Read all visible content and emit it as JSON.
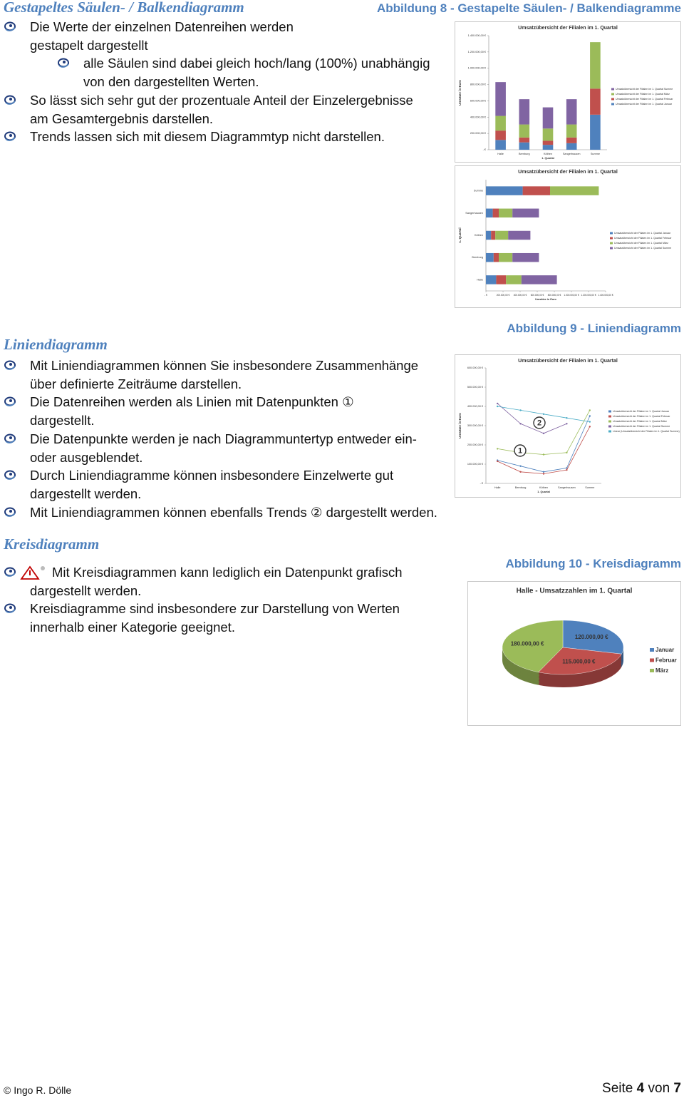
{
  "sections": [
    {
      "heading": "Gestapeltes Säulen- / Balkendiagramm",
      "caption": "Abbildung 8 - Gestapelte Säulen- / Balkendiagramme",
      "bullets": [
        {
          "lines": [
            "Die Werte der einzelnen Datenreihen werden",
            "gestapelt dargestellt"
          ],
          "sub": [
            {
              "lines": [
                "alle Säulen sind dabei gleich hoch/lang (100%) unabhängig",
                "von den dargestellten Werten."
              ]
            }
          ]
        },
        {
          "lines": [
            "So lässt sich sehr gut der prozentuale Anteil der Einzelergebnisse",
            "am Gesamtergebnis darstellen."
          ]
        },
        {
          "lines": [
            "Trends lassen sich mit diesem Diagrammtyp nicht darstellen."
          ]
        }
      ],
      "figures": [
        {
          "type": "stacked-column",
          "title": "Umsatzübersicht der Filialen im 1. Quartal",
          "y_label": "Umsätze in Euro",
          "x_label": "1. Quartal",
          "legend_reversed": true,
          "categories": [
            "Halle",
            "Bernburg",
            "Köthen",
            "Sangerhausen",
            "Summe"
          ],
          "ylim": [
            0,
            1400000
          ],
          "yticks": [
            {
              "value": 0,
              "label": "- €"
            },
            {
              "value": 200000,
              "label": "200.000,00 €"
            },
            {
              "value": 400000,
              "label": "400.000,00 €"
            },
            {
              "value": 600000,
              "label": "600.000,00 €"
            },
            {
              "value": 800000,
              "label": "800.000,00 €"
            },
            {
              "value": 1000000,
              "label": "1.000.000,00 €"
            },
            {
              "value": 1200000,
              "label": "1.200.000,00 €"
            },
            {
              "value": 1400000,
              "label": "1.400.000,00 €"
            }
          ],
          "series": [
            {
              "name": "Umsatzübersicht der Filialen im 1. Quartal Januar",
              "color": "#4f81bd",
              "values": [
                120000,
                90000,
                60000,
                80000,
                430000
              ]
            },
            {
              "name": "Umsatzübersicht der Filialen im 1. Quartal Februar",
              "color": "#c0504d",
              "values": [
                115000,
                60000,
                50000,
                70000,
                320000
              ]
            },
            {
              "name": "Umsatzübersicht der Filialen im 1. Quartal März",
              "color": "#9bbb59",
              "values": [
                180000,
                160000,
                150000,
                160000,
                570000
              ]
            },
            {
              "name": "Umsatzübersicht der Filialen im 1. Quartal Summe",
              "color": "#8064a2",
              "values": [
                415000,
                310000,
                260000,
                310000,
                null
              ]
            }
          ]
        },
        {
          "type": "stacked-bar",
          "title": "Umsatzübersicht der Filialen im 1. Quartal",
          "y_label": "1. Quartal",
          "x_label": "Umsätze in Euro",
          "legend_reversed": false,
          "categories": [
            "Halle",
            "Bernburg",
            "Köthen",
            "Sangerhausen",
            "Summe"
          ],
          "xlim": [
            0,
            1400000
          ],
          "xticks": [
            {
              "value": 0,
              "label": "- €"
            },
            {
              "value": 200000,
              "label": "200.000,00 €"
            },
            {
              "value": 400000,
              "label": "400.000,00 €"
            },
            {
              "value": 600000,
              "label": "600.000,00 €"
            },
            {
              "value": 800000,
              "label": "800.000,00 €"
            },
            {
              "value": 1000000,
              "label": "1.000.000,00 €"
            },
            {
              "value": 1200000,
              "label": "1.200.000,00 €"
            },
            {
              "value": 1400000,
              "label": "1.400.000,00 €"
            }
          ],
          "series": [
            {
              "name": "Umsatzübersicht der Filialen im 1. Quartal Januar",
              "color": "#4f81bd",
              "values": [
                120000,
                90000,
                60000,
                80000,
                430000
              ]
            },
            {
              "name": "Umsatzübersicht der Filialen im 1. Quartal Februar",
              "color": "#c0504d",
              "values": [
                115000,
                60000,
                50000,
                70000,
                320000
              ]
            },
            {
              "name": "Umsatzübersicht der Filialen im 1. Quartal März",
              "color": "#9bbb59",
              "values": [
                180000,
                160000,
                150000,
                160000,
                570000
              ]
            },
            {
              "name": "Umsatzübersicht der Filialen im 1. Quartal Summe",
              "color": "#8064a2",
              "values": [
                415000,
                310000,
                260000,
                310000,
                null
              ]
            }
          ]
        }
      ]
    },
    {
      "heading": "Liniendiagramm",
      "caption": "Abbildung 9 - Liniendiagramm",
      "bullets": [
        {
          "lines": [
            "Mit Liniendiagrammen können Sie insbesondere Zusammenhänge",
            "über definierte Zeiträume darstellen."
          ]
        },
        {
          "lines": [
            "Die Datenreihen werden als Linien mit Datenpunkten ①",
            "dargestellt."
          ]
        },
        {
          "lines": [
            "Die Datenpunkte werden je nach Diagrammuntertyp entweder ein-",
            "oder ausgeblendet."
          ]
        },
        {
          "lines": [
            "Durch Liniendiagramme können insbesondere Einzelwerte gut",
            "dargestellt werden."
          ]
        },
        {
          "lines": [
            "Mit Liniendiagrammen können ebenfalls Trends ② dargestellt werden."
          ]
        }
      ],
      "figures": [
        {
          "type": "line",
          "title": "Umsatzübersicht der Filialen im 1. Quartal",
          "y_label": "Umsätze in Euro",
          "x_label": "1. Quartal",
          "categories": [
            "Halle",
            "Bernburg",
            "Köthen",
            "Sangerhausen",
            "Summe"
          ],
          "ylim": [
            0,
            600000
          ],
          "yticks": [
            {
              "value": 0,
              "label": "- €"
            },
            {
              "value": 100000,
              "label": "100.000,00 €"
            },
            {
              "value": 200000,
              "label": "200.000,00 €"
            },
            {
              "value": 300000,
              "label": "300.000,00 €"
            },
            {
              "value": 400000,
              "label": "400.000,00 €"
            },
            {
              "value": 500000,
              "label": "500.000,00 €"
            },
            {
              "value": 600000,
              "label": "600.000,00 €"
            }
          ],
          "annotations": [
            "1",
            "2"
          ],
          "series": [
            {
              "name": "Umsatzübersicht der Filialen im 1. Quartal Januar",
              "color": "#4f81bd",
              "values": [
                120000,
                90000,
                60000,
                80000,
                350000
              ]
            },
            {
              "name": "Umsatzübersicht der Filialen im 1. Quartal Februar",
              "color": "#c0504d",
              "values": [
                115000,
                60000,
                50000,
                70000,
                295000
              ]
            },
            {
              "name": "Umsatzübersicht der Filialen im 1. Quartal März",
              "color": "#9bbb59",
              "values": [
                180000,
                160000,
                150000,
                160000,
                380000
              ]
            },
            {
              "name": "Umsatzübersicht der Filialen im 1. Quartal Summe",
              "color": "#8064a2",
              "values": [
                415000,
                310000,
                260000,
                310000,
                null
              ]
            },
            {
              "name": "Linear (Umsatzübersicht der Filialen im 1. Quartal Summe)",
              "color": "#4bacc6",
              "values": [
                400000,
                380000,
                360000,
                340000,
                320000
              ]
            }
          ]
        }
      ]
    },
    {
      "heading": "Kreisdiagramm",
      "caption": "Abbildung 10 - Kreisdiagramm",
      "bullets": [
        {
          "icon": "warning",
          "lines": [
            "Mit Kreisdiagrammen kann lediglich ein Datenpunkt grafisch",
            "dargestellt werden."
          ]
        },
        {
          "lines": [
            "Kreisdiagramme sind insbesondere zur Darstellung von Werten",
            "innerhalb einer Kategorie geeignet."
          ]
        }
      ],
      "figures": [
        {
          "type": "pie",
          "title": "Halle - Umsatzzahlen im 1. Quartal",
          "categories": [
            "Januar",
            "Februar",
            "März"
          ],
          "values": [
            120000,
            115000,
            180000
          ],
          "value_labels": [
            "120.000,00 €",
            "115.000,00 €",
            "180.000,00 €"
          ],
          "colors": [
            "#4f81bd",
            "#c0504d",
            "#9bbb59"
          ]
        }
      ]
    }
  ],
  "footer": {
    "author": "© Ingo R. Dölle",
    "page_word": "Seite",
    "page_number": "4",
    "page_of": "von",
    "page_total": "7"
  }
}
